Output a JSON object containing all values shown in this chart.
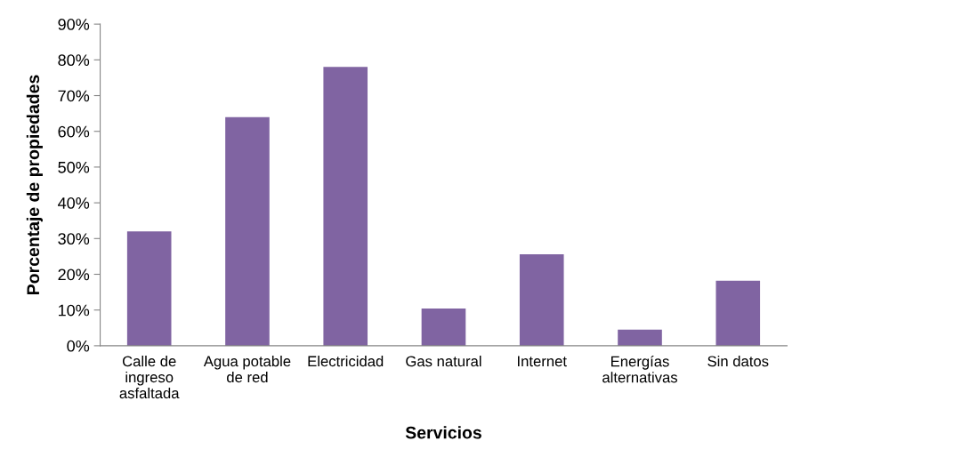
{
  "chart_data": {
    "type": "bar",
    "xlabel": "Servicios",
    "ylabel": "Porcentaje de propiedades",
    "categories": [
      "Calle de\ningreso\nasfaltada",
      "Agua potable\nde red",
      "Electricidad",
      "Gas natural",
      "Internet",
      "Energías\nalternativas",
      "Sin datos"
    ],
    "values": [
      32,
      64,
      78,
      10.4,
      25.6,
      4.5,
      18.2
    ],
    "color": "#8064a2",
    "ylim": [
      0,
      90
    ],
    "yticks": [
      {
        "value": 0,
        "label": "0%"
      },
      {
        "value": 10,
        "label": "10%"
      },
      {
        "value": 20,
        "label": "20%"
      },
      {
        "value": 30,
        "label": "30%"
      },
      {
        "value": 40,
        "label": "40%"
      },
      {
        "value": 50,
        "label": "50%"
      },
      {
        "value": 60,
        "label": "60%"
      },
      {
        "value": 70,
        "label": "70%"
      },
      {
        "value": 80,
        "label": "80%"
      },
      {
        "value": 90,
        "label": "90%"
      }
    ],
    "grid": false,
    "legend": false
  }
}
